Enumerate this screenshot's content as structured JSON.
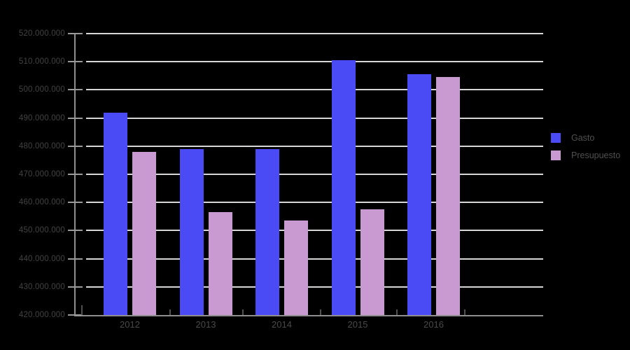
{
  "chart_data": {
    "type": "bar",
    "title": "",
    "xlabel": "",
    "ylabel": "",
    "categories": [
      "2012",
      "2013",
      "2014",
      "2015",
      "2016"
    ],
    "series": [
      {
        "name": "Gasto",
        "color": "#4b4bf5",
        "values": [
          492000000,
          479000000,
          479000000,
          510500000,
          505500000
        ]
      },
      {
        "name": "Presupuesto",
        "color": "#c99ad1",
        "values": [
          478000000,
          456500000,
          453500000,
          457500000,
          504500000
        ]
      }
    ],
    "ylim": [
      420000000,
      520000000
    ],
    "ytick_step": 10000000,
    "grid": true,
    "legend_position": "right",
    "y_ticks": [
      {
        "value": 420000000,
        "label": "420.000.000"
      },
      {
        "value": 430000000,
        "label": "430.000.000"
      },
      {
        "value": 440000000,
        "label": "440.000.000"
      },
      {
        "value": 450000000,
        "label": "450.000.000"
      },
      {
        "value": 460000000,
        "label": "460.000.000"
      },
      {
        "value": 470000000,
        "label": "470.000.000"
      },
      {
        "value": 480000000,
        "label": "480.000.000"
      },
      {
        "value": 490000000,
        "label": "490.000.000"
      },
      {
        "value": 500000000,
        "label": "500.000.000"
      },
      {
        "value": 510000000,
        "label": "510.000.000"
      },
      {
        "value": 520000000,
        "label": "520.000.000"
      }
    ]
  },
  "legend": {
    "items": [
      {
        "label": "Gasto",
        "color": "#4b4bf5"
      },
      {
        "label": "Presupuesto",
        "color": "#c99ad1"
      }
    ]
  },
  "colors": {
    "background": "#000000",
    "gridline": "#d6d6d6",
    "axis": "#8f8f8f",
    "y_tick": "#9a9a9a",
    "category_tick": "#4f4f4f",
    "y_label": "#434343",
    "x_label": "#4a4a4a",
    "legend_label": "#505050"
  }
}
